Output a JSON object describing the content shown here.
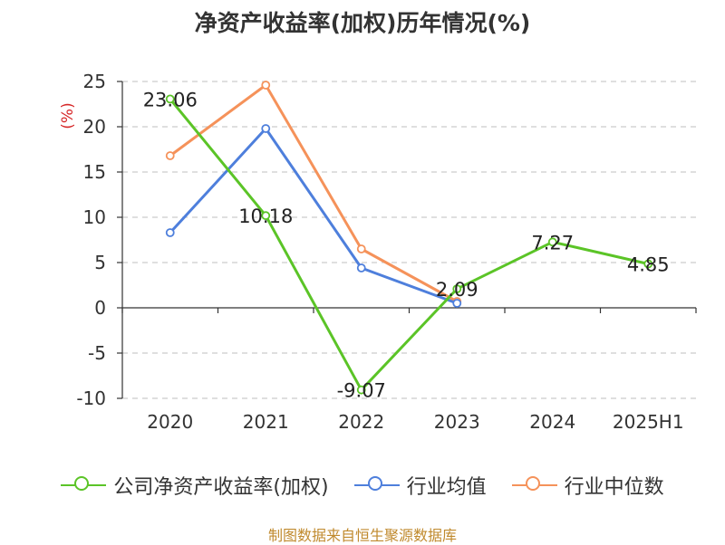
{
  "page": {
    "title": "净资产收益率(加权)历年情况(%)",
    "source": "制图数据来自恒生聚源数据库"
  },
  "chart_data": {
    "type": "line",
    "title": "净资产收益率(加权)历年情况(%)",
    "ylabel": "(%)",
    "xlabel": "",
    "categories": [
      "2020",
      "2021",
      "2022",
      "2023",
      "2024",
      "2025H1"
    ],
    "ylim": [
      -10,
      25
    ],
    "yticks": [
      -10,
      -5,
      0,
      5,
      10,
      15,
      20,
      25
    ],
    "grid": "horizontal-dashed",
    "legend_position": "bottom",
    "series": [
      {
        "name": "公司净资产收益率(加权)",
        "color": "#5bc427",
        "values": [
          23.06,
          10.18,
          -9.07,
          2.09,
          7.27,
          4.85
        ],
        "labels": [
          "23.06",
          "10.18",
          "-9.07",
          "2.09",
          "7.27",
          "4.85"
        ]
      },
      {
        "name": "行业均值",
        "color": "#4e7fdc",
        "values": [
          8.3,
          19.8,
          4.4,
          0.5,
          null,
          null
        ]
      },
      {
        "name": "行业中位数",
        "color": "#f5925a",
        "values": [
          16.8,
          24.6,
          6.5,
          0.7,
          null,
          null
        ]
      }
    ]
  }
}
